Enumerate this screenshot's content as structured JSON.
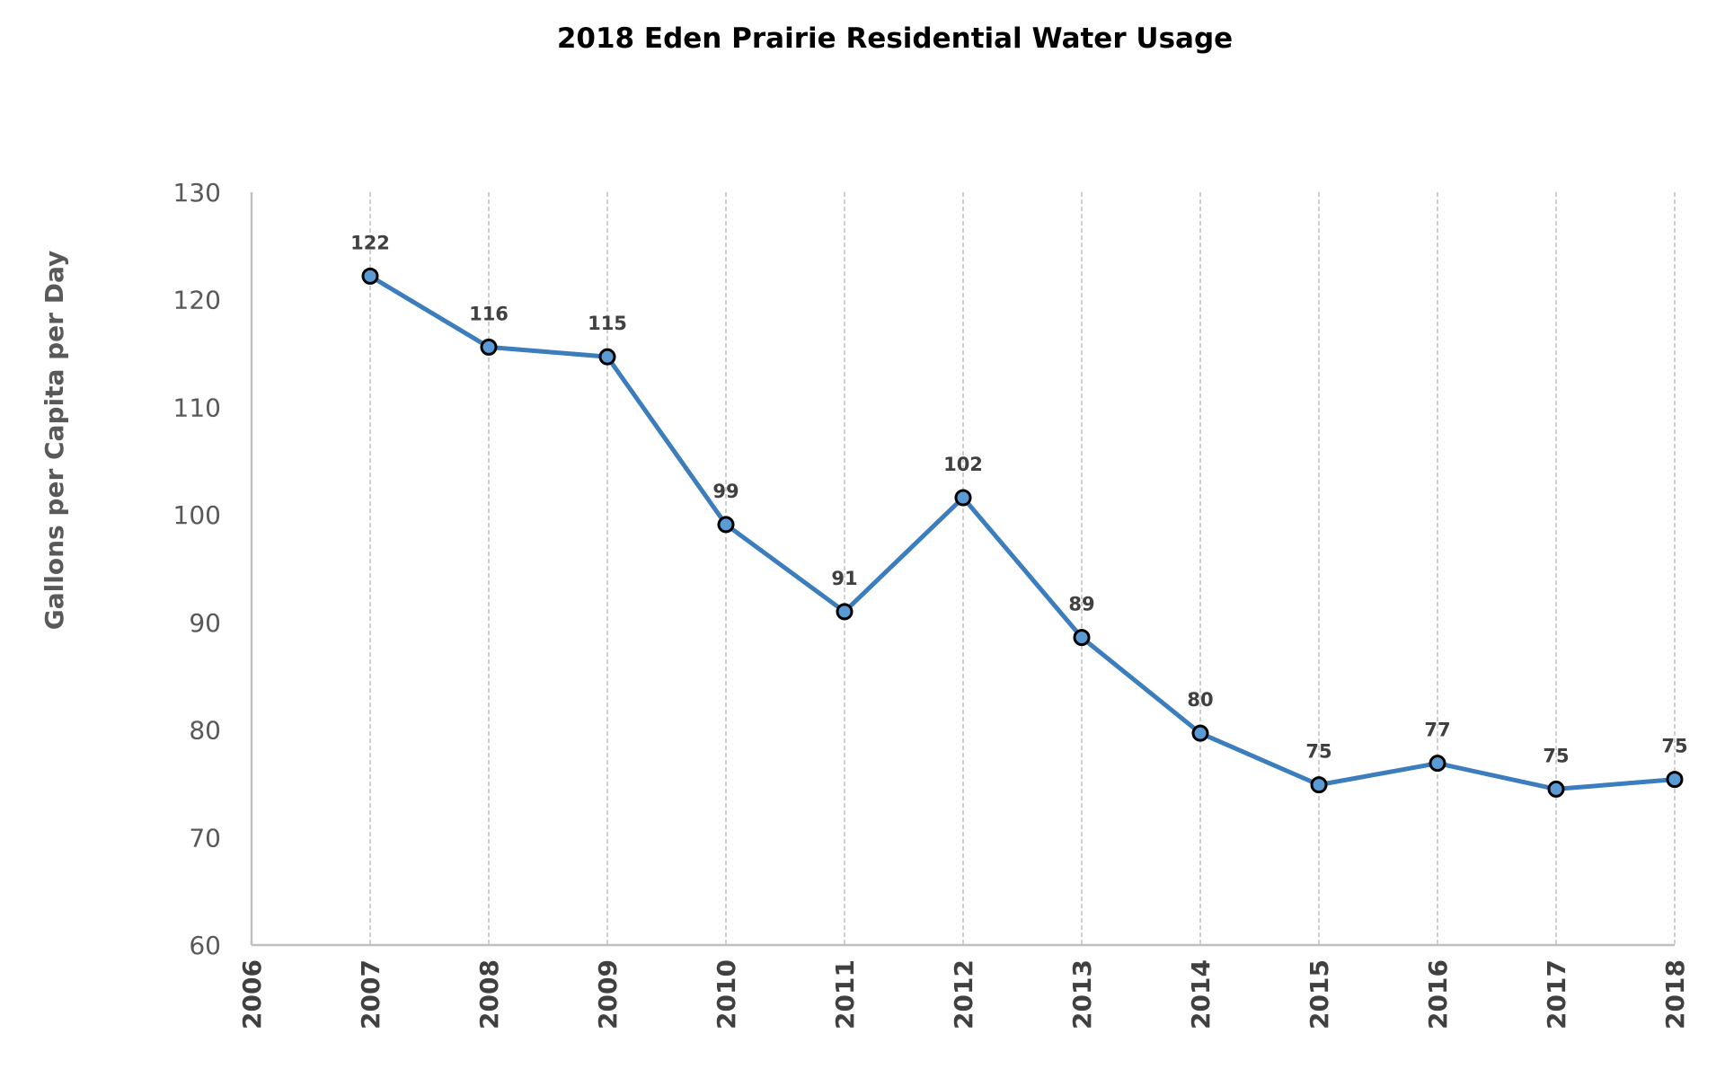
{
  "chart_data": {
    "type": "line",
    "title": "2018 Eden Prairie Residential Water Usage",
    "xlabel": "",
    "ylabel": "Gallons per Capita per Day",
    "xlim": [
      2006,
      2018
    ],
    "ylim": [
      60,
      130
    ],
    "x_ticks": [
      "2006",
      "2007",
      "2008",
      "2009",
      "2010",
      "2011",
      "2012",
      "2013",
      "2014",
      "2015",
      "2016",
      "2017",
      "2018"
    ],
    "y_ticks": [
      "60",
      "70",
      "80",
      "90",
      "100",
      "110",
      "120",
      "130"
    ],
    "grid": "vertical dashed",
    "legend": "none",
    "colors": {
      "line": "#3B7DBD",
      "marker_fill": "#5B9BD5",
      "marker_edge": "#000000",
      "grid": "#D0D0D0",
      "axis": "#BFBFBF"
    },
    "x": [
      2007,
      2008,
      2009,
      2010,
      2011,
      2012,
      2013,
      2014,
      2015,
      2016,
      2017,
      2018
    ],
    "values": [
      122.2,
      115.6,
      114.7,
      99.1,
      91.0,
      101.6,
      88.6,
      79.7,
      74.9,
      76.9,
      74.5,
      75.4
    ],
    "data_labels": [
      "122",
      "116",
      "115",
      "99",
      "91",
      "102",
      "89",
      "80",
      "75",
      "77",
      "75",
      "75"
    ]
  }
}
